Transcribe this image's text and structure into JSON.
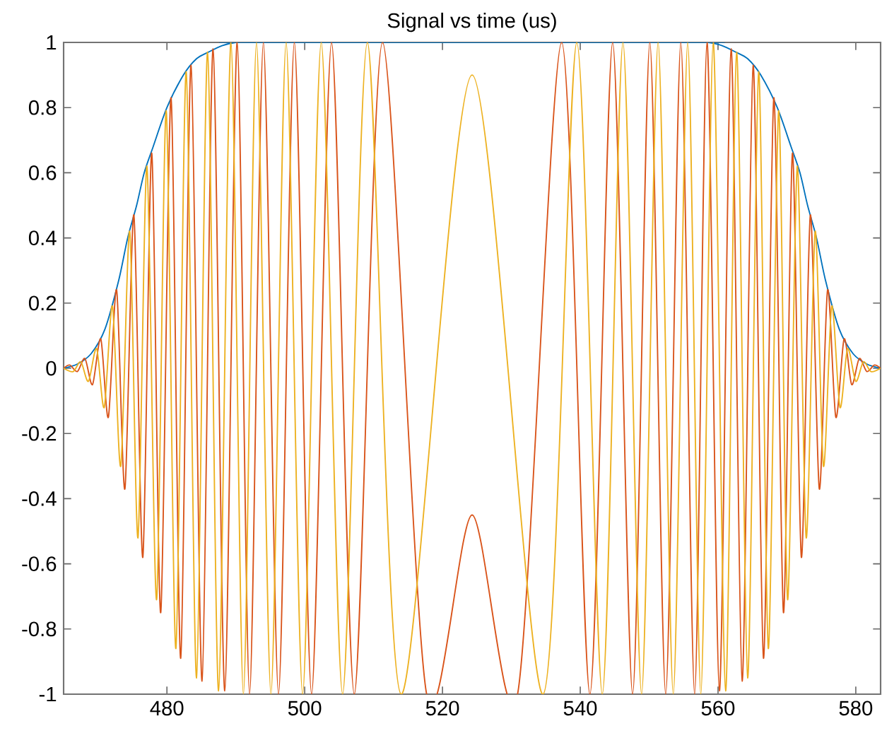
{
  "chart_data": {
    "type": "line",
    "title": "Signal vs time (us)",
    "xlim": [
      465,
      583.6
    ],
    "ylim": [
      -1,
      1
    ],
    "xticks": [
      480,
      500,
      520,
      540,
      560,
      580
    ],
    "yticks": [
      -1,
      -0.8,
      -0.6,
      -0.4,
      -0.2,
      0,
      0.2,
      0.4,
      0.6,
      0.8,
      1
    ],
    "series": [
      {
        "color": "#0072bd",
        "x": [
          465,
          467,
          469,
          471,
          473,
          474.3,
          475.6,
          476.7,
          478,
          480,
          482.4,
          484.3,
          486,
          488,
          490,
          492.3,
          556.3,
          558.6,
          560.6,
          562.6,
          564.3,
          566.2,
          568.6,
          570.6,
          571.9,
          573,
          574.3,
          575.6,
          577.6,
          579.6,
          581.6,
          583.6
        ],
        "values": [
          0,
          0.013,
          0.045,
          0.12,
          0.27,
          0.4,
          0.5,
          0.6,
          0.68,
          0.8,
          0.9,
          0.95,
          0.97,
          0.99,
          1,
          1,
          1,
          1,
          0.99,
          0.97,
          0.95,
          0.9,
          0.8,
          0.68,
          0.6,
          0.5,
          0.4,
          0.27,
          0.12,
          0.045,
          0.013,
          0
        ]
      },
      {
        "color": "#d95319",
        "x": [
          465,
          465.9,
          467.0,
          468.1,
          469.2,
          470.4,
          471.5,
          472.7,
          473.9,
          475.2,
          476.5,
          477.8,
          479.1,
          480.6,
          482.0,
          483.5,
          485.1,
          486.7,
          488.4,
          490.2,
          492.0,
          494.0,
          496.2,
          498.5,
          501.0,
          503.9,
          507.2,
          511.3,
          517.7,
          524.3,
          530.9,
          537.3,
          541.4,
          544.7,
          547.6,
          550.1,
          552.4,
          554.6,
          556.6,
          558.4,
          560.2,
          561.9,
          563.5,
          565.1,
          566.6,
          568.1,
          569.5,
          570.8,
          572.1,
          573.4,
          574.7,
          575.9,
          577.1,
          578.3,
          579.4,
          580.5,
          581.6,
          582.7,
          583.6
        ],
        "values": [
          0,
          0.01,
          -0.01,
          0.03,
          -0.05,
          0.09,
          -0.15,
          0.24,
          -0.37,
          0.47,
          -0.58,
          0.66,
          -0.75,
          0.83,
          -0.89,
          0.93,
          -0.96,
          0.98,
          -0.99,
          1,
          -1,
          1,
          -1,
          1,
          -1,
          1,
          -1,
          1,
          -1,
          -0.45,
          -1,
          1,
          -1,
          1,
          -1,
          1,
          -1,
          1,
          -1,
          1,
          -0.99,
          0.98,
          -0.96,
          0.93,
          -0.89,
          0.83,
          -0.75,
          0.66,
          -0.58,
          0.47,
          -0.37,
          0.24,
          -0.15,
          0.09,
          -0.05,
          0.03,
          -0.01,
          0.01,
          0
        ]
      },
      {
        "color": "#edb120",
        "x": [
          465,
          466.4,
          467.5,
          468.6,
          469.8,
          470.9,
          472.1,
          473.3,
          474.6,
          475.8,
          477.1,
          478.5,
          479.9,
          481.3,
          482.8,
          484.3,
          485.9,
          487.5,
          489.3,
          491.1,
          493.0,
          495.1,
          497.3,
          499.7,
          502.4,
          505.5,
          509.1,
          514.0,
          524.3,
          534.6,
          539.5,
          543.2,
          546.2,
          548.9,
          551.3,
          553.5,
          555.6,
          557.5,
          559.3,
          561.1,
          562.7,
          564.3,
          565.9,
          567.3,
          568.8,
          570.1,
          571.5,
          572.8,
          574.1,
          575.3,
          576.5,
          577.7,
          578.8,
          580.0,
          581.1,
          582.2,
          583.6
        ],
        "values": [
          0,
          -0.01,
          0.02,
          -0.04,
          0.06,
          -0.12,
          0.19,
          -0.3,
          0.42,
          -0.52,
          0.62,
          -0.71,
          0.79,
          -0.86,
          0.91,
          -0.95,
          0.97,
          -0.99,
          1,
          -1,
          1,
          -1,
          1,
          -1,
          1,
          -1,
          1,
          -1,
          0.9,
          -1,
          1,
          -1,
          1,
          -1,
          1,
          -1,
          1,
          -1,
          1,
          -0.99,
          0.97,
          -0.95,
          0.91,
          -0.86,
          0.79,
          -0.71,
          0.62,
          -0.52,
          0.42,
          -0.3,
          0.19,
          -0.12,
          0.06,
          -0.04,
          0.02,
          -0.01,
          0
        ]
      }
    ]
  }
}
